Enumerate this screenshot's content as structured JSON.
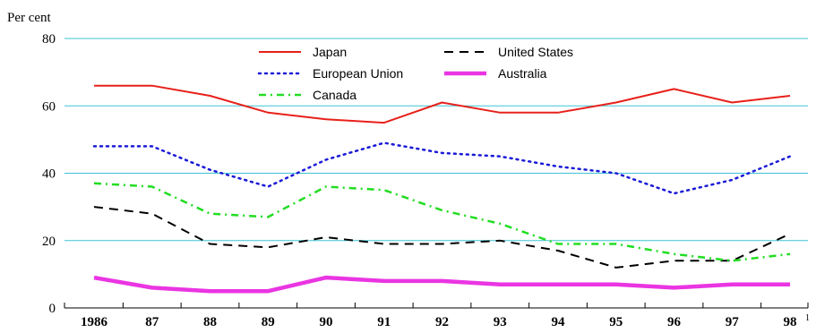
{
  "chart_data": {
    "type": "line",
    "ylabel": "Per cent",
    "ylim": [
      0,
      80
    ],
    "yticks": [
      0,
      20,
      40,
      60,
      80
    ],
    "grid": "horizontal",
    "categories": [
      "1986",
      "87",
      "88",
      "89",
      "90",
      "91",
      "92",
      "93",
      "94",
      "95",
      "96",
      "97",
      "98"
    ],
    "footnote_mark": "1",
    "legend_position": "top-center",
    "series": [
      {
        "name": "Japan",
        "color": "#e8201a",
        "style": "solid",
        "values": [
          66,
          66,
          63,
          58,
          56,
          55,
          61,
          58,
          58,
          61,
          65,
          61,
          63
        ]
      },
      {
        "name": "United States",
        "color": "#000000",
        "style": "dashed",
        "values": [
          30,
          28,
          19,
          18,
          21,
          19,
          19,
          20,
          17,
          12,
          14,
          14,
          22
        ]
      },
      {
        "name": "European Union",
        "color": "#1a1ad8",
        "style": "dotted",
        "values": [
          48,
          48,
          41,
          36,
          44,
          49,
          46,
          45,
          42,
          40,
          34,
          38,
          45
        ]
      },
      {
        "name": "Australia",
        "color": "#ea35e2",
        "style": "thick",
        "values": [
          9,
          6,
          5,
          5,
          9,
          8,
          8,
          7,
          7,
          7,
          6,
          7,
          7
        ]
      },
      {
        "name": "Canada",
        "color": "#22dd22",
        "style": "dashdot",
        "values": [
          37,
          36,
          28,
          27,
          36,
          35,
          29,
          25,
          19,
          19,
          16,
          14,
          16
        ]
      }
    ]
  }
}
